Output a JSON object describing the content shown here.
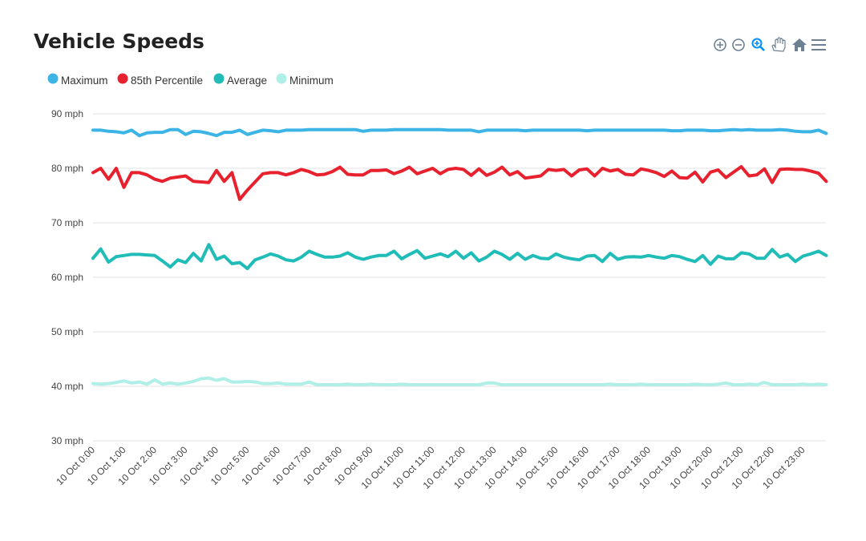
{
  "chart_data": {
    "type": "line",
    "title": "Vehicle Speeds",
    "date": "10 Oct",
    "ylim": [
      30,
      90
    ],
    "y_ticks": [
      "30 mph",
      "40 mph",
      "50 mph",
      "60 mph",
      "70 mph",
      "80 mph",
      "90 mph"
    ],
    "y_tick_values": [
      30,
      40,
      50,
      60,
      70,
      80,
      90
    ],
    "x_tick_labels": [
      "10 Oct 0:00",
      "10 Oct 1:00",
      "10 Oct 2:00",
      "10 Oct 3:00",
      "10 Oct 4:00",
      "10 Oct 5:00",
      "10 Oct 6:00",
      "10 Oct 7:00",
      "10 Oct 8:00",
      "10 Oct 9:00",
      "10 Oct 10:00",
      "10 Oct 11:00",
      "10 Oct 12:00",
      "10 Oct 13:00",
      "10 Oct 14:00",
      "10 Oct 15:00",
      "10 Oct 16:00",
      "10 Oct 17:00",
      "10 Oct 18:00",
      "10 Oct 19:00",
      "10 Oct 20:00",
      "10 Oct 21:00",
      "10 Oct 22:00",
      "10 Oct 23:00"
    ],
    "x": [
      "0:00",
      "0:15",
      "0:30",
      "0:45",
      "1:00",
      "1:15",
      "1:30",
      "1:45",
      "2:00",
      "2:15",
      "2:30",
      "2:45",
      "3:00",
      "3:15",
      "3:30",
      "3:45",
      "4:00",
      "4:15",
      "4:30",
      "4:45",
      "5:00",
      "5:15",
      "5:30",
      "5:45",
      "6:00",
      "6:15",
      "6:30",
      "6:45",
      "7:00",
      "7:15",
      "7:30",
      "7:45",
      "8:00",
      "8:15",
      "8:30",
      "8:45",
      "9:00",
      "9:15",
      "9:30",
      "9:45",
      "10:00",
      "10:15",
      "10:30",
      "10:45",
      "11:00",
      "11:15",
      "11:30",
      "11:45",
      "12:00",
      "12:15",
      "12:30",
      "12:45",
      "13:00",
      "13:15",
      "13:30",
      "13:45",
      "14:00",
      "14:15",
      "14:30",
      "14:45",
      "15:00",
      "15:15",
      "15:30",
      "15:45",
      "16:00",
      "16:15",
      "16:30",
      "16:45",
      "17:00",
      "17:15",
      "17:30",
      "17:45",
      "18:00",
      "18:15",
      "18:30",
      "18:45",
      "19:00",
      "19:15",
      "19:30",
      "19:45",
      "20:00",
      "20:15",
      "20:30",
      "20:45",
      "21:00",
      "21:15",
      "21:30",
      "21:45",
      "22:00",
      "22:15",
      "22:30",
      "22:45",
      "23:00",
      "23:15",
      "23:30",
      "23:45"
    ],
    "grid": true,
    "legend_placement": "top-left",
    "series": [
      {
        "name": "Maximum",
        "color": "#3cb4e6",
        "values": [
          87,
          87,
          86.8,
          86.7,
          86.5,
          87,
          86,
          86.5,
          86.6,
          86.6,
          87.1,
          87.1,
          86.2,
          86.8,
          86.7,
          86.4,
          86,
          86.6,
          86.6,
          87,
          86.2,
          86.6,
          87,
          86.9,
          86.7,
          87,
          87,
          87,
          87.1,
          87.1,
          87.1,
          87.1,
          87.1,
          87.1,
          87.1,
          86.8,
          87,
          87,
          87,
          87.1,
          87.1,
          87.1,
          87.1,
          87.1,
          87.1,
          87.1,
          87,
          87,
          87,
          87,
          86.7,
          87,
          87,
          87,
          87,
          87,
          86.9,
          87,
          87,
          87,
          87,
          87,
          87,
          87,
          86.9,
          87,
          87,
          87,
          87,
          87,
          87,
          87,
          87,
          87,
          87,
          86.9,
          86.9,
          87,
          87,
          87,
          86.9,
          86.9,
          87,
          87.1,
          87,
          87.1,
          87,
          87,
          87,
          87.1,
          87,
          86.8,
          86.7,
          86.7,
          87,
          86.4
        ]
      },
      {
        "name": "85th Percentile",
        "color": "#e8212e",
        "values": [
          79.2,
          80,
          78,
          80,
          76.5,
          79.2,
          79.2,
          78.8,
          78,
          77.6,
          78.2,
          78.4,
          78.6,
          77.6,
          77.5,
          77.4,
          79.6,
          77.6,
          79.2,
          74.3,
          76,
          77.5,
          79,
          79.2,
          79.2,
          78.8,
          79.2,
          79.8,
          79.4,
          78.8,
          78.9,
          79.4,
          80.2,
          78.9,
          78.8,
          78.8,
          79.6,
          79.6,
          79.7,
          79,
          79.5,
          80.2,
          79,
          79.5,
          80,
          79,
          79.8,
          80,
          79.8,
          78.7,
          79.9,
          78.7,
          79.3,
          80.2,
          78.8,
          79.4,
          78.2,
          78.4,
          78.6,
          79.8,
          79.6,
          79.8,
          78.6,
          79.7,
          79.9,
          78.6,
          80,
          79.5,
          79.8,
          78.9,
          78.8,
          79.9,
          79.6,
          79.2,
          78.5,
          79.5,
          78.3,
          78.2,
          79.3,
          77.5,
          79.3,
          79.7,
          78.3,
          79.3,
          80.3,
          78.6,
          78.8,
          79.9,
          77.4,
          79.8,
          79.9,
          79.8,
          79.8,
          79.5,
          79.1,
          77.6
        ]
      },
      {
        "name": "Average",
        "color": "#1fbcb8",
        "values": [
          63.5,
          65.2,
          62.8,
          63.8,
          64,
          64.2,
          64.2,
          64.1,
          64,
          63,
          61.9,
          63.2,
          62.7,
          64.4,
          63,
          66,
          63.3,
          63.9,
          62.5,
          62.7,
          61.6,
          63.2,
          63.7,
          64.3,
          63.9,
          63.2,
          63,
          63.7,
          64.8,
          64.2,
          63.7,
          63.7,
          63.9,
          64.5,
          63.7,
          63.3,
          63.7,
          64,
          64,
          64.8,
          63.4,
          64.2,
          64.9,
          63.5,
          63.9,
          64.3,
          63.8,
          64.8,
          63.5,
          64.5,
          63,
          63.7,
          64.8,
          64.2,
          63.3,
          64.4,
          63.3,
          64,
          63.5,
          63.4,
          64.3,
          63.7,
          63.4,
          63.2,
          63.9,
          64,
          62.9,
          64.4,
          63.3,
          63.7,
          63.8,
          63.7,
          64,
          63.7,
          63.5,
          64,
          63.8,
          63.3,
          62.9,
          64,
          62.4,
          63.9,
          63.4,
          63.4,
          64.5,
          64.3,
          63.5,
          63.5,
          65.1,
          63.7,
          64.2,
          62.9,
          63.9,
          64.3,
          64.8,
          64
        ]
      },
      {
        "name": "Minimum",
        "color": "#b0efe8",
        "values": [
          40.5,
          40.4,
          40.5,
          40.7,
          41,
          40.6,
          40.8,
          40.4,
          41.2,
          40.4,
          40.6,
          40.4,
          40.6,
          40.9,
          41.4,
          41.5,
          41.1,
          41.4,
          40.8,
          40.8,
          40.9,
          40.8,
          40.5,
          40.5,
          40.6,
          40.4,
          40.4,
          40.4,
          40.8,
          40.3,
          40.3,
          40.3,
          40.3,
          40.4,
          40.3,
          40.3,
          40.4,
          40.3,
          40.3,
          40.3,
          40.4,
          40.3,
          40.3,
          40.3,
          40.3,
          40.3,
          40.3,
          40.3,
          40.3,
          40.3,
          40.3,
          40.6,
          40.6,
          40.3,
          40.3,
          40.3,
          40.3,
          40.3,
          40.3,
          40.3,
          40.3,
          40.3,
          40.3,
          40.3,
          40.3,
          40.3,
          40.3,
          40.4,
          40.3,
          40.3,
          40.3,
          40.4,
          40.3,
          40.3,
          40.3,
          40.3,
          40.3,
          40.3,
          40.4,
          40.3,
          40.3,
          40.4,
          40.6,
          40.3,
          40.3,
          40.4,
          40.3,
          40.7,
          40.3,
          40.3,
          40.3,
          40.3,
          40.4,
          40.3,
          40.4,
          40.3
        ]
      }
    ]
  },
  "toolbar": {
    "icons": [
      "zoom-in-icon",
      "zoom-out-icon",
      "selection-zoom-icon",
      "pan-hand-icon",
      "home-reset-icon",
      "menu-icon"
    ],
    "active_color": "#008ffb",
    "icon_color": "#6e8192"
  }
}
